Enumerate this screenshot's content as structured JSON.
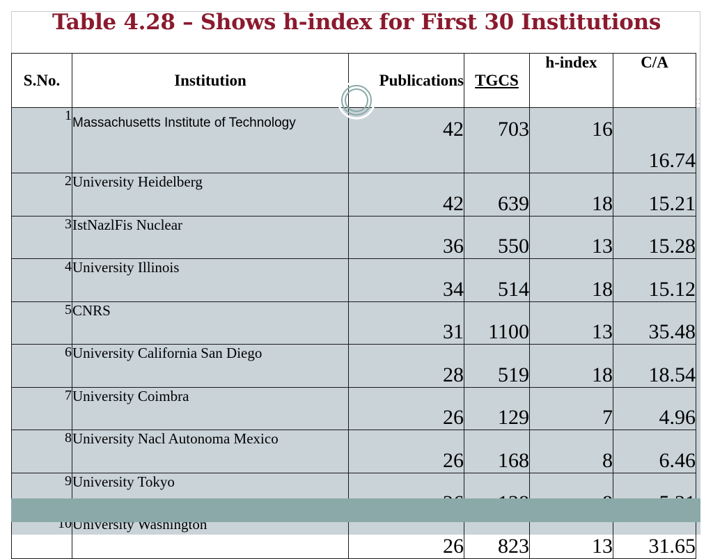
{
  "title": "Table 4.28 – Shows h-index for First 30 Institutions",
  "table": {
    "headers": {
      "sno": "S.No.",
      "institution": "Institution",
      "publications": "Publications",
      "tgcs": "TGCS",
      "hindex": "h-index",
      "ca": "C/A"
    },
    "rows": [
      {
        "sno": "1",
        "institution": "Massachusetts Institute of Technology",
        "publications": "42",
        "tgcs": "703",
        "hindex": "16",
        "ca": "16.74"
      },
      {
        "sno": "2",
        "institution": "University Heidelberg",
        "publications": "42",
        "tgcs": "639",
        "hindex": "18",
        "ca": "15.21"
      },
      {
        "sno": "3",
        "institution": "IstNazlFis Nuclear",
        "publications": "36",
        "tgcs": "550",
        "hindex": "13",
        "ca": "15.28"
      },
      {
        "sno": "4",
        "institution": "University Illinois",
        "publications": "34",
        "tgcs": "514",
        "hindex": "18",
        "ca": "15.12"
      },
      {
        "sno": "5",
        "institution": "CNRS",
        "publications": "31",
        "tgcs": "1100",
        "hindex": "13",
        "ca": "35.48"
      },
      {
        "sno": "6",
        "institution": "University California San Diego",
        "publications": "28",
        "tgcs": "519",
        "hindex": "18",
        "ca": "18.54"
      },
      {
        "sno": "7",
        "institution": "University Coimbra",
        "publications": "26",
        "tgcs": "129",
        "hindex": "7",
        "ca": "4.96"
      },
      {
        "sno": "8",
        "institution": "University Nacl Autonoma Mexico",
        "publications": "26",
        "tgcs": "168",
        "hindex": "8",
        "ca": "6.46"
      },
      {
        "sno": "9",
        "institution": "University Tokyo",
        "publications": "26",
        "tgcs": "138",
        "hindex": "8",
        "ca": "5.31"
      },
      {
        "sno": "10",
        "institution": "University Washington",
        "publications": "26",
        "tgcs": "823",
        "hindex": "13",
        "ca": "31.65"
      }
    ]
  },
  "colors": {
    "title": "#8b1a2e",
    "tgcs_link": "#1a8ac9",
    "band_grey": "#c9d3d8",
    "band_teal": "#8aa9a8"
  }
}
